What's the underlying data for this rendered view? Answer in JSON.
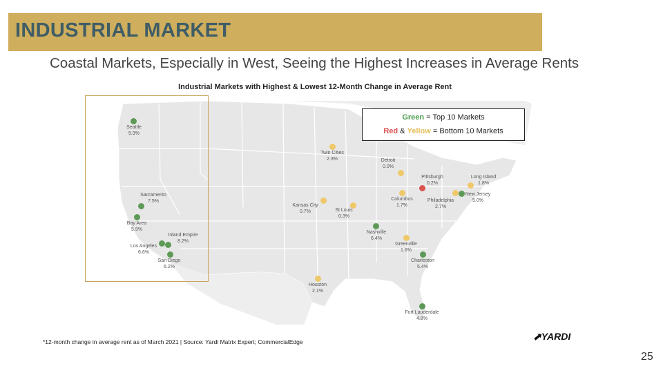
{
  "header": {
    "title": "INDUSTRIAL MARKET"
  },
  "subtitle": "Coastal Markets, Especially in West, Seeing the Highest Increases in Average Rents",
  "map_title": "Industrial Markets with Highest & Lowest 12-Month Change in Average Rent",
  "legend": {
    "green_word": "Green",
    "green_text": " = Top 10 Markets",
    "red_word": "Red",
    "amp": " & ",
    "yellow_word": "Yellow",
    "bottom_text": " = Bottom 10 Markets"
  },
  "colors": {
    "green": "#5e9a57",
    "red": "#d9534f",
    "yellow": "#efc86a",
    "gold": "#cfae5d",
    "title_text": "#3f5d66"
  },
  "markets": [
    {
      "name": "Seattle",
      "value": "5.9%",
      "group": "top"
    },
    {
      "name": "Sacramento",
      "value": "7.5%",
      "group": "top"
    },
    {
      "name": "Bay Area",
      "value": "5.9%",
      "group": "top"
    },
    {
      "name": "Inland Empire",
      "value": "8.2%",
      "group": "top"
    },
    {
      "name": "Los Angeles",
      "value": "6.6%",
      "group": "top"
    },
    {
      "name": "San Diego",
      "value": "6.2%",
      "group": "top"
    },
    {
      "name": "Twin Cities",
      "value": "2.3%",
      "group": "bottom"
    },
    {
      "name": "Detroit",
      "value": "0.0%",
      "group": "bottom"
    },
    {
      "name": "Pittsburgh",
      "value": "0.2%",
      "group": "bottom-red"
    },
    {
      "name": "Long Island",
      "value": "1.8%",
      "group": "bottom"
    },
    {
      "name": "Kansas City",
      "value": "0.7%",
      "group": "bottom"
    },
    {
      "name": "St Louis",
      "value": "0.3%",
      "group": "bottom"
    },
    {
      "name": "Columbus",
      "value": "1.7%",
      "group": "bottom"
    },
    {
      "name": "Philadelphia",
      "value": "2.7%",
      "group": "bottom"
    },
    {
      "name": "New Jersey",
      "value": "5.0%",
      "group": "top"
    },
    {
      "name": "Nashville",
      "value": "6.4%",
      "group": "top"
    },
    {
      "name": "Greenville",
      "value": "1.6%",
      "group": "bottom"
    },
    {
      "name": "Charleston",
      "value": "5.4%",
      "group": "top"
    },
    {
      "name": "Houston",
      "value": "2.1%",
      "group": "bottom"
    },
    {
      "name": "Fort Lauderdale",
      "value": "4.8%",
      "group": "top"
    }
  ],
  "footnote": "*12-month change in average rent as of March 2021  |  Source: Yardi Matrix Expert; CommercialEdge",
  "logo": "YARDI",
  "page_number": "25"
}
